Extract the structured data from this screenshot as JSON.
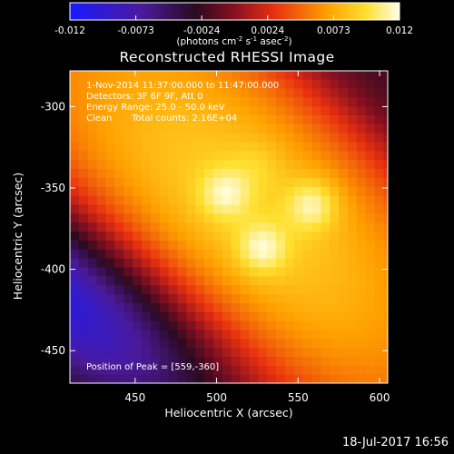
{
  "chart_data": {
    "type": "heatmap",
    "title": "Reconstructed RHESSI Image",
    "xlabel": "Heliocentric X (arcsec)",
    "ylabel": "Heliocentric Y (arcsec)",
    "xlim": [
      410,
      605
    ],
    "ylim": [
      -470,
      -278
    ],
    "x_ticks": [
      450,
      500,
      550,
      600
    ],
    "y_ticks": [
      -300,
      -350,
      -400,
      -450
    ],
    "colorbar": {
      "range": [
        -0.012,
        0.012
      ],
      "ticks": [
        "-0.012",
        "-0.0073",
        "-0.0024",
        "0.0024",
        "0.0073",
        "0.012"
      ],
      "unit_parts": [
        "(photons cm",
        "-2",
        " s",
        "-1",
        " asec",
        "-2",
        ")"
      ],
      "colormap": "RHESSI flux: blue - purple - red - orange - yellow - white"
    },
    "annotations": {
      "time_range": "1-Nov-2014 11:37:00.000 to 11:47:00.000",
      "detectors": "Detectors: 3F 6F 9F, Att 0",
      "energy_range": "Energy Range: 25.0 - 50.0 keV",
      "method": "Clean",
      "total_counts": "Total counts: 2.16E+04",
      "peak_position": "Position of Peak = [559,-360]"
    },
    "peak": {
      "x": 559,
      "y": -360
    },
    "sources": [
      {
        "x": 505,
        "y": -353,
        "value": 0.0115
      },
      {
        "x": 559,
        "y": -360,
        "value": 0.012
      },
      {
        "x": 528,
        "y": -387,
        "value": 0.0118
      },
      {
        "x": 525,
        "y": -335,
        "value": 0.0095
      }
    ]
  },
  "footer": {
    "date": "18-Jul-2017 16:56"
  }
}
